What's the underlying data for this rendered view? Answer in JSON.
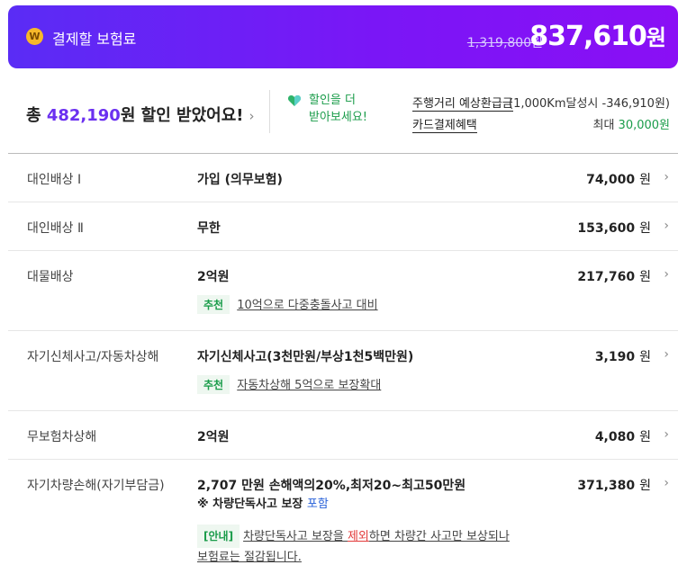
{
  "header": {
    "coin_glyph": "W",
    "title": "결제할 보험료",
    "original_price": "1,319,800원",
    "final_price": "837,610",
    "final_unit": "원"
  },
  "summary": {
    "prefix": "총 ",
    "amount": "482,190",
    "suffix": "원 할인 받았어요!",
    "more_line1": "할인을 더",
    "more_line2": "받아보세요!",
    "benefit1_label": "주행거리 예상환급금",
    "benefit1_value": "(1,000Km달성시 -346,910원)",
    "benefit2_label": "카드결제혜택",
    "benefit2_prefix": "최대 ",
    "benefit2_value": "30,000원"
  },
  "rows": [
    {
      "label": "대인배상 Ⅰ",
      "value": "가입 (의무보험)",
      "price": "74,000",
      "unit": "원"
    },
    {
      "label": "대인배상 Ⅱ",
      "value": "무한",
      "price": "153,600",
      "unit": "원"
    },
    {
      "label": "대물배상",
      "value": "2억원",
      "price": "217,760",
      "unit": "원",
      "rec_badge": "추천",
      "rec_text": "10억으로 다중충돌사고 대비"
    },
    {
      "label": "자기신체사고/자동차상해",
      "value": "자기신체사고(3천만원/부상1천5백만원)",
      "price": "3,190",
      "unit": "원",
      "rec_badge": "추천",
      "rec_text": "자동차상해 5억으로 보장확대"
    },
    {
      "label": "무보험차상해",
      "value": "2억원",
      "price": "4,080",
      "unit": "원"
    },
    {
      "label": "자기차량손해(자기부담금)",
      "value": "2,707 만원 손해액의20%,최저20~최고50만원",
      "price": "371,380",
      "unit": "원",
      "note_main": "※ 차량단독사고 보장 ",
      "note_blue": "포함",
      "guide_badge": "[안내]",
      "guide_1": "차량단독사고 보장을 ",
      "guide_red": "제외",
      "guide_2": "하면 차량간 사고만 보상되나",
      "guide_3": "보험료는 절감됩니다."
    }
  ],
  "colors": {
    "accent": "#6b30f0",
    "green": "#1a9c4a",
    "red": "#e23b3b",
    "blue": "#2962d9"
  }
}
